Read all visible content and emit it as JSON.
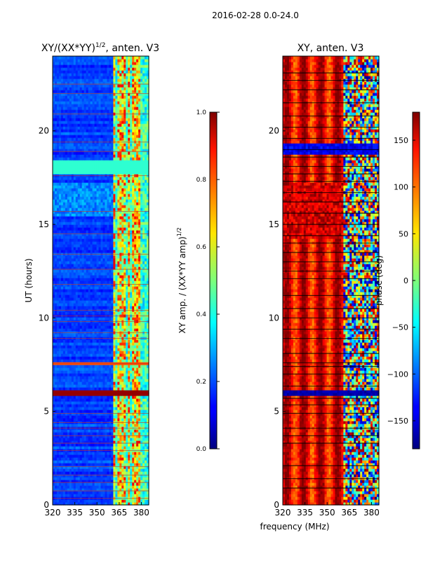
{
  "figure_title": "2016-02-28 0.0-24.0",
  "chart_data": [
    {
      "type": "heatmap",
      "title": "XY/(XX*YY)^1/2, anten. V3",
      "title_main": "XY/(XX*YY)",
      "title_exp": "1/2",
      "title_rest": ", anten. V3",
      "xlabel": "frequency (MHz)",
      "ylabel": "UT (hours)",
      "xlim": [
        320,
        385
      ],
      "ylim": [
        0,
        24
      ],
      "xticks": [
        320,
        335,
        350,
        365,
        380
      ],
      "yticks": [
        0,
        5,
        10,
        15,
        20
      ],
      "colorbar": {
        "label": "XY amp. / (XX*YY amp)^1/2",
        "label_main": "XY amp. / (XX*YY amp)",
        "label_exp": "1/2",
        "range": [
          0.0,
          1.0
        ],
        "ticks": [
          "0.0",
          "0.2",
          "0.4",
          "0.6",
          "0.8",
          "1.0"
        ],
        "colormap": "jet"
      },
      "bands": [
        {
          "t0": 5.85,
          "t1": 6.2,
          "value": 0.98
        },
        {
          "t0": 17.7,
          "t1": 18.4,
          "value": 0.42
        },
        {
          "t0": 7.45,
          "t1": 7.6,
          "value": 0.8
        }
      ]
    },
    {
      "type": "heatmap",
      "title": "XY, anten. V3",
      "xlabel": "frequency (MHz)",
      "ylabel": "",
      "xlim": [
        320,
        385
      ],
      "ylim": [
        0,
        24
      ],
      "xticks": [
        320,
        335,
        350,
        365,
        380
      ],
      "yticks": [
        0,
        5,
        10,
        15,
        20
      ],
      "colorbar": {
        "label": "phase (deg)",
        "range": [
          -180,
          180
        ],
        "ticks": [
          "150",
          "100",
          "50",
          "0",
          "−50",
          "−100",
          "−150"
        ],
        "tick_values": [
          150,
          100,
          50,
          0,
          -50,
          -100,
          -150
        ],
        "colormap": "jet"
      }
    }
  ]
}
